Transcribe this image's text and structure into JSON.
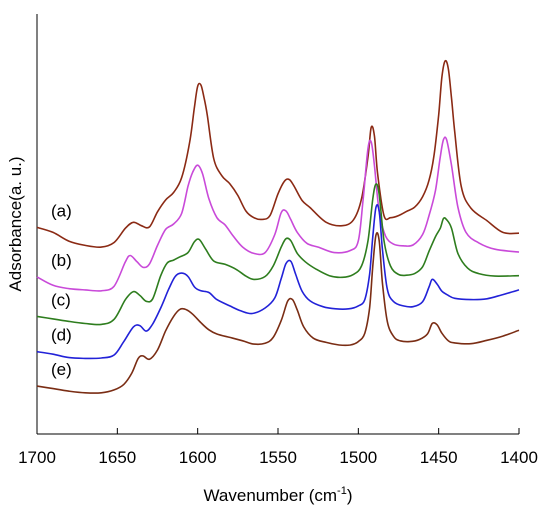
{
  "chart_data": {
    "type": "line",
    "title": "",
    "xlabel_main": "Wavenumber (cm",
    "xlabel_sup": "-1",
    "xlabel_close": ")",
    "ylabel": "Adsorbance(a. u.)",
    "xlim": [
      1700,
      1400
    ],
    "x_reversed": true,
    "x_ticks": [
      "1700",
      "1650",
      "1600",
      "1550",
      "1500",
      "1450",
      "1400"
    ],
    "y_ticks_shown": false,
    "grid": false,
    "legend": "none",
    "series": [
      {
        "label": "(a)",
        "color": "#8b2a14",
        "points": [
          [
            1700,
            0.492
          ],
          [
            1690,
            0.48
          ],
          [
            1680,
            0.459
          ],
          [
            1670,
            0.449
          ],
          [
            1660,
            0.445
          ],
          [
            1652,
            0.456
          ],
          [
            1645,
            0.49
          ],
          [
            1640,
            0.504
          ],
          [
            1635,
            0.496
          ],
          [
            1630,
            0.493
          ],
          [
            1625,
            0.529
          ],
          [
            1620,
            0.557
          ],
          [
            1615,
            0.575
          ],
          [
            1610,
            0.61
          ],
          [
            1605,
            0.694
          ],
          [
            1602,
            0.779
          ],
          [
            1600,
            0.828
          ],
          [
            1598,
            0.831
          ],
          [
            1596,
            0.8
          ],
          [
            1594,
            0.759
          ],
          [
            1590,
            0.656
          ],
          [
            1585,
            0.615
          ],
          [
            1580,
            0.596
          ],
          [
            1575,
            0.568
          ],
          [
            1570,
            0.531
          ],
          [
            1565,
            0.515
          ],
          [
            1560,
            0.511
          ],
          [
            1555,
            0.52
          ],
          [
            1550,
            0.572
          ],
          [
            1546,
            0.602
          ],
          [
            1543,
            0.606
          ],
          [
            1540,
            0.59
          ],
          [
            1535,
            0.556
          ],
          [
            1530,
            0.539
          ],
          [
            1520,
            0.504
          ],
          [
            1510,
            0.496
          ],
          [
            1503,
            0.51
          ],
          [
            1498,
            0.56
          ],
          [
            1494,
            0.66
          ],
          [
            1492,
            0.73
          ],
          [
            1490,
            0.71
          ],
          [
            1488,
            0.62
          ],
          [
            1484,
            0.52
          ],
          [
            1480,
            0.515
          ],
          [
            1475,
            0.52
          ],
          [
            1470,
            0.53
          ],
          [
            1465,
            0.54
          ],
          [
            1460,
            0.565
          ],
          [
            1456,
            0.604
          ],
          [
            1453,
            0.66
          ],
          [
            1450,
            0.76
          ],
          [
            1448,
            0.85
          ],
          [
            1446,
            0.888
          ],
          [
            1444,
            0.87
          ],
          [
            1442,
            0.8
          ],
          [
            1440,
            0.72
          ],
          [
            1436,
            0.59
          ],
          [
            1430,
            0.538
          ],
          [
            1420,
            0.508
          ],
          [
            1410,
            0.48
          ],
          [
            1400,
            0.478
          ]
        ]
      },
      {
        "label": "(b)",
        "color": "#c94ad9",
        "points": [
          [
            1700,
            0.374
          ],
          [
            1690,
            0.354
          ],
          [
            1680,
            0.346
          ],
          [
            1670,
            0.343
          ],
          [
            1660,
            0.341
          ],
          [
            1652,
            0.352
          ],
          [
            1645,
            0.41
          ],
          [
            1642,
            0.425
          ],
          [
            1638,
            0.411
          ],
          [
            1634,
            0.397
          ],
          [
            1630,
            0.405
          ],
          [
            1625,
            0.449
          ],
          [
            1620,
            0.487
          ],
          [
            1615,
            0.5
          ],
          [
            1610,
            0.525
          ],
          [
            1606,
            0.59
          ],
          [
            1603,
            0.624
          ],
          [
            1600,
            0.64
          ],
          [
            1597,
            0.62
          ],
          [
            1593,
            0.56
          ],
          [
            1588,
            0.515
          ],
          [
            1583,
            0.498
          ],
          [
            1578,
            0.472
          ],
          [
            1572,
            0.445
          ],
          [
            1565,
            0.43
          ],
          [
            1558,
            0.432
          ],
          [
            1552,
            0.475
          ],
          [
            1548,
            0.527
          ],
          [
            1545,
            0.531
          ],
          [
            1542,
            0.51
          ],
          [
            1538,
            0.48
          ],
          [
            1532,
            0.454
          ],
          [
            1525,
            0.445
          ],
          [
            1515,
            0.432
          ],
          [
            1505,
            0.437
          ],
          [
            1500,
            0.46
          ],
          [
            1497,
            0.56
          ],
          [
            1494,
            0.68
          ],
          [
            1492,
            0.695
          ],
          [
            1490,
            0.64
          ],
          [
            1487,
            0.53
          ],
          [
            1483,
            0.471
          ],
          [
            1478,
            0.452
          ],
          [
            1472,
            0.448
          ],
          [
            1466,
            0.45
          ],
          [
            1460,
            0.475
          ],
          [
            1456,
            0.52
          ],
          [
            1452,
            0.58
          ],
          [
            1449,
            0.66
          ],
          [
            1447,
            0.701
          ],
          [
            1445,
            0.7
          ],
          [
            1442,
            0.64
          ],
          [
            1438,
            0.54
          ],
          [
            1433,
            0.48
          ],
          [
            1425,
            0.455
          ],
          [
            1415,
            0.44
          ],
          [
            1400,
            0.433
          ]
        ]
      },
      {
        "label": "(c)",
        "color": "#2e7d1e",
        "points": [
          [
            1700,
            0.28
          ],
          [
            1690,
            0.274
          ],
          [
            1680,
            0.268
          ],
          [
            1670,
            0.263
          ],
          [
            1660,
            0.261
          ],
          [
            1652,
            0.273
          ],
          [
            1645,
            0.32
          ],
          [
            1640,
            0.339
          ],
          [
            1636,
            0.33
          ],
          [
            1632,
            0.316
          ],
          [
            1628,
            0.322
          ],
          [
            1623,
            0.377
          ],
          [
            1619,
            0.407
          ],
          [
            1615,
            0.414
          ],
          [
            1611,
            0.422
          ],
          [
            1606,
            0.432
          ],
          [
            1602,
            0.458
          ],
          [
            1599,
            0.463
          ],
          [
            1595,
            0.44
          ],
          [
            1590,
            0.412
          ],
          [
            1583,
            0.404
          ],
          [
            1576,
            0.392
          ],
          [
            1570,
            0.376
          ],
          [
            1565,
            0.368
          ],
          [
            1558,
            0.375
          ],
          [
            1553,
            0.4
          ],
          [
            1548,
            0.445
          ],
          [
            1545,
            0.465
          ],
          [
            1542,
            0.46
          ],
          [
            1538,
            0.43
          ],
          [
            1533,
            0.41
          ],
          [
            1526,
            0.392
          ],
          [
            1518,
            0.377
          ],
          [
            1510,
            0.373
          ],
          [
            1503,
            0.38
          ],
          [
            1498,
            0.4
          ],
          [
            1494,
            0.46
          ],
          [
            1491,
            0.56
          ],
          [
            1489,
            0.595
          ],
          [
            1487,
            0.57
          ],
          [
            1484,
            0.46
          ],
          [
            1480,
            0.4
          ],
          [
            1475,
            0.38
          ],
          [
            1470,
            0.378
          ],
          [
            1465,
            0.382
          ],
          [
            1460,
            0.398
          ],
          [
            1456,
            0.435
          ],
          [
            1452,
            0.47
          ],
          [
            1449,
            0.49
          ],
          [
            1447,
            0.513
          ],
          [
            1445,
            0.51
          ],
          [
            1442,
            0.49
          ],
          [
            1438,
            0.43
          ],
          [
            1432,
            0.395
          ],
          [
            1425,
            0.382
          ],
          [
            1415,
            0.376
          ],
          [
            1400,
            0.377
          ]
        ]
      },
      {
        "label": "(d)",
        "color": "#2222d8",
        "points": [
          [
            1700,
            0.196
          ],
          [
            1690,
            0.19
          ],
          [
            1680,
            0.182
          ],
          [
            1670,
            0.18
          ],
          [
            1660,
            0.181
          ],
          [
            1652,
            0.188
          ],
          [
            1646,
            0.22
          ],
          [
            1640,
            0.255
          ],
          [
            1636,
            0.258
          ],
          [
            1632,
            0.245
          ],
          [
            1628,
            0.262
          ],
          [
            1623,
            0.3
          ],
          [
            1618,
            0.345
          ],
          [
            1614,
            0.375
          ],
          [
            1610,
            0.383
          ],
          [
            1606,
            0.375
          ],
          [
            1602,
            0.35
          ],
          [
            1598,
            0.341
          ],
          [
            1593,
            0.337
          ],
          [
            1588,
            0.32
          ],
          [
            1580,
            0.305
          ],
          [
            1573,
            0.293
          ],
          [
            1566,
            0.287
          ],
          [
            1558,
            0.3
          ],
          [
            1552,
            0.324
          ],
          [
            1548,
            0.37
          ],
          [
            1545,
            0.406
          ],
          [
            1542,
            0.411
          ],
          [
            1539,
            0.38
          ],
          [
            1535,
            0.34
          ],
          [
            1530,
            0.317
          ],
          [
            1522,
            0.303
          ],
          [
            1514,
            0.298
          ],
          [
            1506,
            0.298
          ],
          [
            1500,
            0.305
          ],
          [
            1496,
            0.32
          ],
          [
            1493,
            0.38
          ],
          [
            1491,
            0.47
          ],
          [
            1489,
            0.54
          ],
          [
            1487,
            0.53
          ],
          [
            1485,
            0.44
          ],
          [
            1482,
            0.345
          ],
          [
            1478,
            0.315
          ],
          [
            1472,
            0.305
          ],
          [
            1466,
            0.303
          ],
          [
            1460,
            0.315
          ],
          [
            1456,
            0.35
          ],
          [
            1454,
            0.368
          ],
          [
            1451,
            0.357
          ],
          [
            1448,
            0.34
          ],
          [
            1444,
            0.33
          ],
          [
            1440,
            0.323
          ],
          [
            1430,
            0.32
          ],
          [
            1420,
            0.322
          ],
          [
            1410,
            0.332
          ],
          [
            1400,
            0.343
          ]
        ]
      },
      {
        "label": "(e)",
        "color": "#7a2d14",
        "points": [
          [
            1700,
            0.114
          ],
          [
            1690,
            0.108
          ],
          [
            1680,
            0.102
          ],
          [
            1670,
            0.098
          ],
          [
            1660,
            0.098
          ],
          [
            1652,
            0.105
          ],
          [
            1646,
            0.118
          ],
          [
            1641,
            0.145
          ],
          [
            1637,
            0.18
          ],
          [
            1634,
            0.186
          ],
          [
            1630,
            0.178
          ],
          [
            1625,
            0.2
          ],
          [
            1620,
            0.245
          ],
          [
            1615,
            0.28
          ],
          [
            1611,
            0.297
          ],
          [
            1607,
            0.296
          ],
          [
            1603,
            0.285
          ],
          [
            1598,
            0.265
          ],
          [
            1593,
            0.248
          ],
          [
            1588,
            0.238
          ],
          [
            1580,
            0.23
          ],
          [
            1572,
            0.222
          ],
          [
            1565,
            0.214
          ],
          [
            1558,
            0.216
          ],
          [
            1553,
            0.23
          ],
          [
            1548,
            0.27
          ],
          [
            1544,
            0.316
          ],
          [
            1541,
            0.32
          ],
          [
            1538,
            0.295
          ],
          [
            1534,
            0.255
          ],
          [
            1528,
            0.228
          ],
          [
            1520,
            0.218
          ],
          [
            1512,
            0.212
          ],
          [
            1505,
            0.212
          ],
          [
            1500,
            0.22
          ],
          [
            1496,
            0.24
          ],
          [
            1493,
            0.3
          ],
          [
            1491,
            0.4
          ],
          [
            1489,
            0.474
          ],
          [
            1487,
            0.46
          ],
          [
            1485,
            0.36
          ],
          [
            1482,
            0.268
          ],
          [
            1478,
            0.232
          ],
          [
            1474,
            0.222
          ],
          [
            1468,
            0.22
          ],
          [
            1462,
            0.225
          ],
          [
            1457,
            0.238
          ],
          [
            1454,
            0.263
          ],
          [
            1451,
            0.26
          ],
          [
            1448,
            0.24
          ],
          [
            1444,
            0.222
          ],
          [
            1440,
            0.217
          ],
          [
            1430,
            0.215
          ],
          [
            1420,
            0.223
          ],
          [
            1410,
            0.233
          ],
          [
            1400,
            0.247
          ]
        ]
      }
    ]
  }
}
